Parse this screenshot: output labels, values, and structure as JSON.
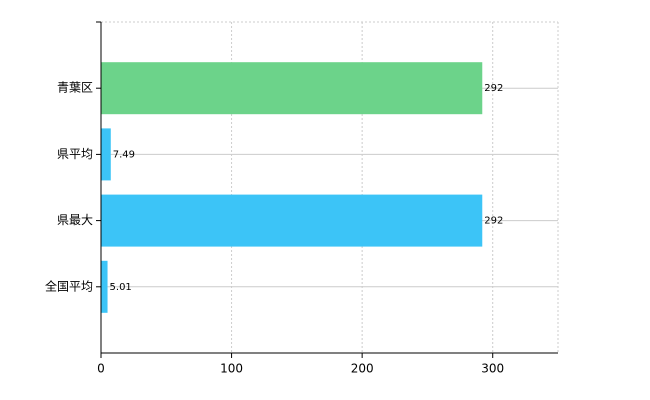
{
  "chart_data": {
    "type": "barh",
    "categories": [
      "青葉区",
      "県平均",
      "県最大",
      "全国平均"
    ],
    "values": [
      292,
      7.49,
      292,
      5.01
    ],
    "colors": [
      "#6cd38a",
      "#3cc4f7",
      "#3cc4f7",
      "#3cc4f7"
    ],
    "xlim": [
      0,
      350
    ],
    "xticks": [
      0,
      100,
      200,
      300
    ],
    "grid": true
  }
}
